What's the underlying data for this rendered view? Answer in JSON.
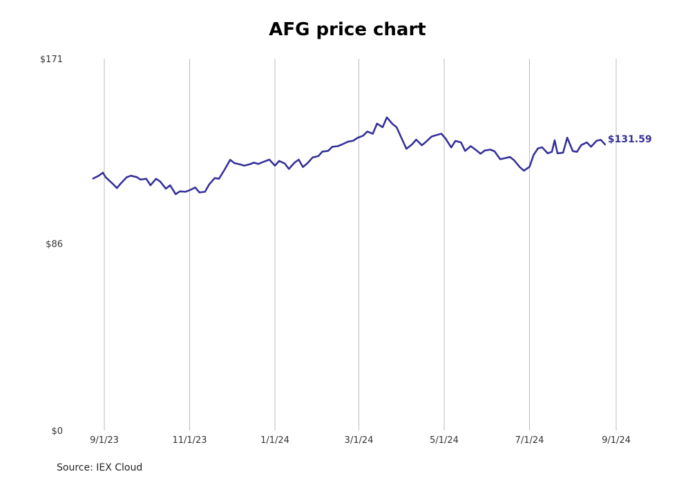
{
  "colors": {
    "line": "#35309a",
    "grid": "#bbbbbb",
    "end_label": "#35309a"
  },
  "source_note": "Source: IEX Cloud",
  "chart_data": {
    "type": "line",
    "title": "AFG price chart",
    "xlabel": "",
    "ylabel": "",
    "grid": "vertical",
    "ylim": [
      0,
      171
    ],
    "y_ticks": [
      {
        "value": 0,
        "label": "$0"
      },
      {
        "value": 86,
        "label": "$86"
      },
      {
        "value": 171,
        "label": "$171"
      }
    ],
    "xlim": [
      "2023-08-25",
      "2024-09-01"
    ],
    "x_ticks": [
      {
        "date": "2023-09-01",
        "label": "9/1/23"
      },
      {
        "date": "2023-11-01",
        "label": "11/1/23"
      },
      {
        "date": "2024-01-01",
        "label": "1/1/24"
      },
      {
        "date": "2024-03-01",
        "label": "3/1/24"
      },
      {
        "date": "2024-05-01",
        "label": "5/1/24"
      },
      {
        "date": "2024-07-01",
        "label": "7/1/24"
      },
      {
        "date": "2024-09-01",
        "label": "9/1/24"
      }
    ],
    "end_value_label": "$131.59",
    "series": [
      {
        "x": [
          "2023-08-24",
          "2023-08-28",
          "2023-08-31",
          "2023-09-02",
          "2023-09-07",
          "2023-09-10",
          "2023-09-13",
          "2023-09-17",
          "2023-09-20",
          "2023-09-24",
          "2023-09-27",
          "2023-10-01",
          "2023-10-04",
          "2023-10-08",
          "2023-10-11",
          "2023-10-15",
          "2023-10-18",
          "2023-10-22",
          "2023-10-25",
          "2023-10-29",
          "2023-11-01",
          "2023-11-05",
          "2023-11-08",
          "2023-11-12",
          "2023-11-15",
          "2023-11-19",
          "2023-11-22",
          "2023-11-26",
          "2023-11-30",
          "2023-12-03",
          "2023-12-07",
          "2023-12-10",
          "2023-12-14",
          "2023-12-17",
          "2023-12-20",
          "2023-12-24",
          "2023-12-28",
          "2024-01-01",
          "2024-01-04",
          "2024-01-08",
          "2024-01-11",
          "2024-01-15",
          "2024-01-18",
          "2024-01-21",
          "2024-01-24",
          "2024-01-28",
          "2024-02-01",
          "2024-02-04",
          "2024-02-08",
          "2024-02-11",
          "2024-02-15",
          "2024-02-18",
          "2024-02-22",
          "2024-02-26",
          "2024-02-29",
          "2024-03-04",
          "2024-03-07",
          "2024-03-11",
          "2024-03-14",
          "2024-03-18",
          "2024-03-21",
          "2024-03-25",
          "2024-03-28",
          "2024-04-01",
          "2024-04-04",
          "2024-04-08",
          "2024-04-11",
          "2024-04-15",
          "2024-04-18",
          "2024-04-22",
          "2024-04-25",
          "2024-04-29",
          "2024-05-02",
          "2024-05-06",
          "2024-05-09",
          "2024-05-13",
          "2024-05-16",
          "2024-05-20",
          "2024-05-23",
          "2024-05-27",
          "2024-05-30",
          "2024-06-03",
          "2024-06-06",
          "2024-06-10",
          "2024-06-13",
          "2024-06-17",
          "2024-06-20",
          "2024-06-24",
          "2024-06-27",
          "2024-07-01",
          "2024-07-04",
          "2024-07-07",
          "2024-07-10",
          "2024-07-14",
          "2024-07-17",
          "2024-07-19",
          "2024-07-21",
          "2024-07-25",
          "2024-07-28",
          "2024-08-01",
          "2024-08-04",
          "2024-08-07",
          "2024-08-11",
          "2024-08-14",
          "2024-08-18",
          "2024-08-21",
          "2024-08-24"
        ],
        "values": [
          115.9,
          117.2,
          118.6,
          116.5,
          113.5,
          111.5,
          113.8,
          116.5,
          117.2,
          116.6,
          115.4,
          115.8,
          112.8,
          115.8,
          114.5,
          111.2,
          112.8,
          108.7,
          110.0,
          109.8,
          110.5,
          111.8,
          109.5,
          109.8,
          113.2,
          116.1,
          115.8,
          120.0,
          124.5,
          123.0,
          122.4,
          121.8,
          122.5,
          123.2,
          122.6,
          123.6,
          124.6,
          121.8,
          124.0,
          122.8,
          120.3,
          123.2,
          124.6,
          121.2,
          122.8,
          125.6,
          126.2,
          128.3,
          128.6,
          130.5,
          130.8,
          131.6,
          132.8,
          133.3,
          134.6,
          135.6,
          137.5,
          136.5,
          141.2,
          139.5,
          144.0,
          141.0,
          139.5,
          133.8,
          129.6,
          131.6,
          133.8,
          131.2,
          132.8,
          135.2,
          135.8,
          136.5,
          134.3,
          130.2,
          133.2,
          132.5,
          128.6,
          130.8,
          129.4,
          127.3,
          128.8,
          129.2,
          128.4,
          124.8,
          125.2,
          125.8,
          124.3,
          121.2,
          119.5,
          121.3,
          126.8,
          129.7,
          130.3,
          127.5,
          128.2,
          133.5,
          127.5,
          127.8,
          134.7,
          128.5,
          128.2,
          131.3,
          132.5,
          130.5,
          133.3,
          133.7,
          131.59
        ]
      }
    ]
  }
}
